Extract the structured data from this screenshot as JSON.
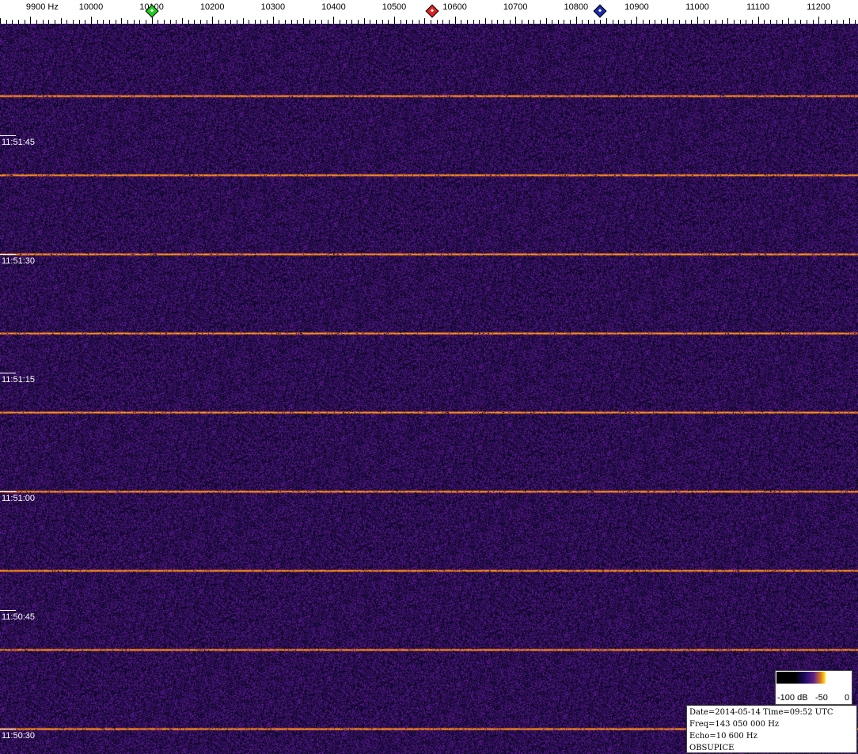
{
  "frequency_axis": {
    "labels": [
      "9900 Hz",
      "10000",
      "10100",
      "10200",
      "10300",
      "10400",
      "10500",
      "10600",
      "10700",
      "10800",
      "10900",
      "11000",
      "11100",
      "11200"
    ],
    "values": [
      9900,
      10000,
      10100,
      10200,
      10300,
      10400,
      10500,
      10600,
      10700,
      10800,
      10900,
      11000,
      11100,
      11200
    ]
  },
  "markers": [
    {
      "name": "green-marker",
      "freq_hz": 10100,
      "color": "#22cc22"
    },
    {
      "name": "red-marker",
      "freq_hz": 10563,
      "color": "#dd2222"
    },
    {
      "name": "blue-marker",
      "freq_hz": 10840,
      "color": "#1a2aaa"
    }
  ],
  "time_labels": [
    "11:51:45",
    "11:51:30",
    "11:51:15",
    "11:51:00",
    "11:50:45",
    "11:50:30"
  ],
  "signal_interval_s": 10,
  "colors": {
    "background": "#1c1150",
    "signal": "#ffb020"
  },
  "colorbar": {
    "labels": [
      "-100 dB",
      "-50",
      "0"
    ]
  },
  "info": {
    "line1": "Date=2014-05-14 Time=09:52 UTC",
    "line2": "Freq=143 050 000 Hz",
    "line3": "Echo=10 600 Hz",
    "line4": "OBSUPICE"
  }
}
